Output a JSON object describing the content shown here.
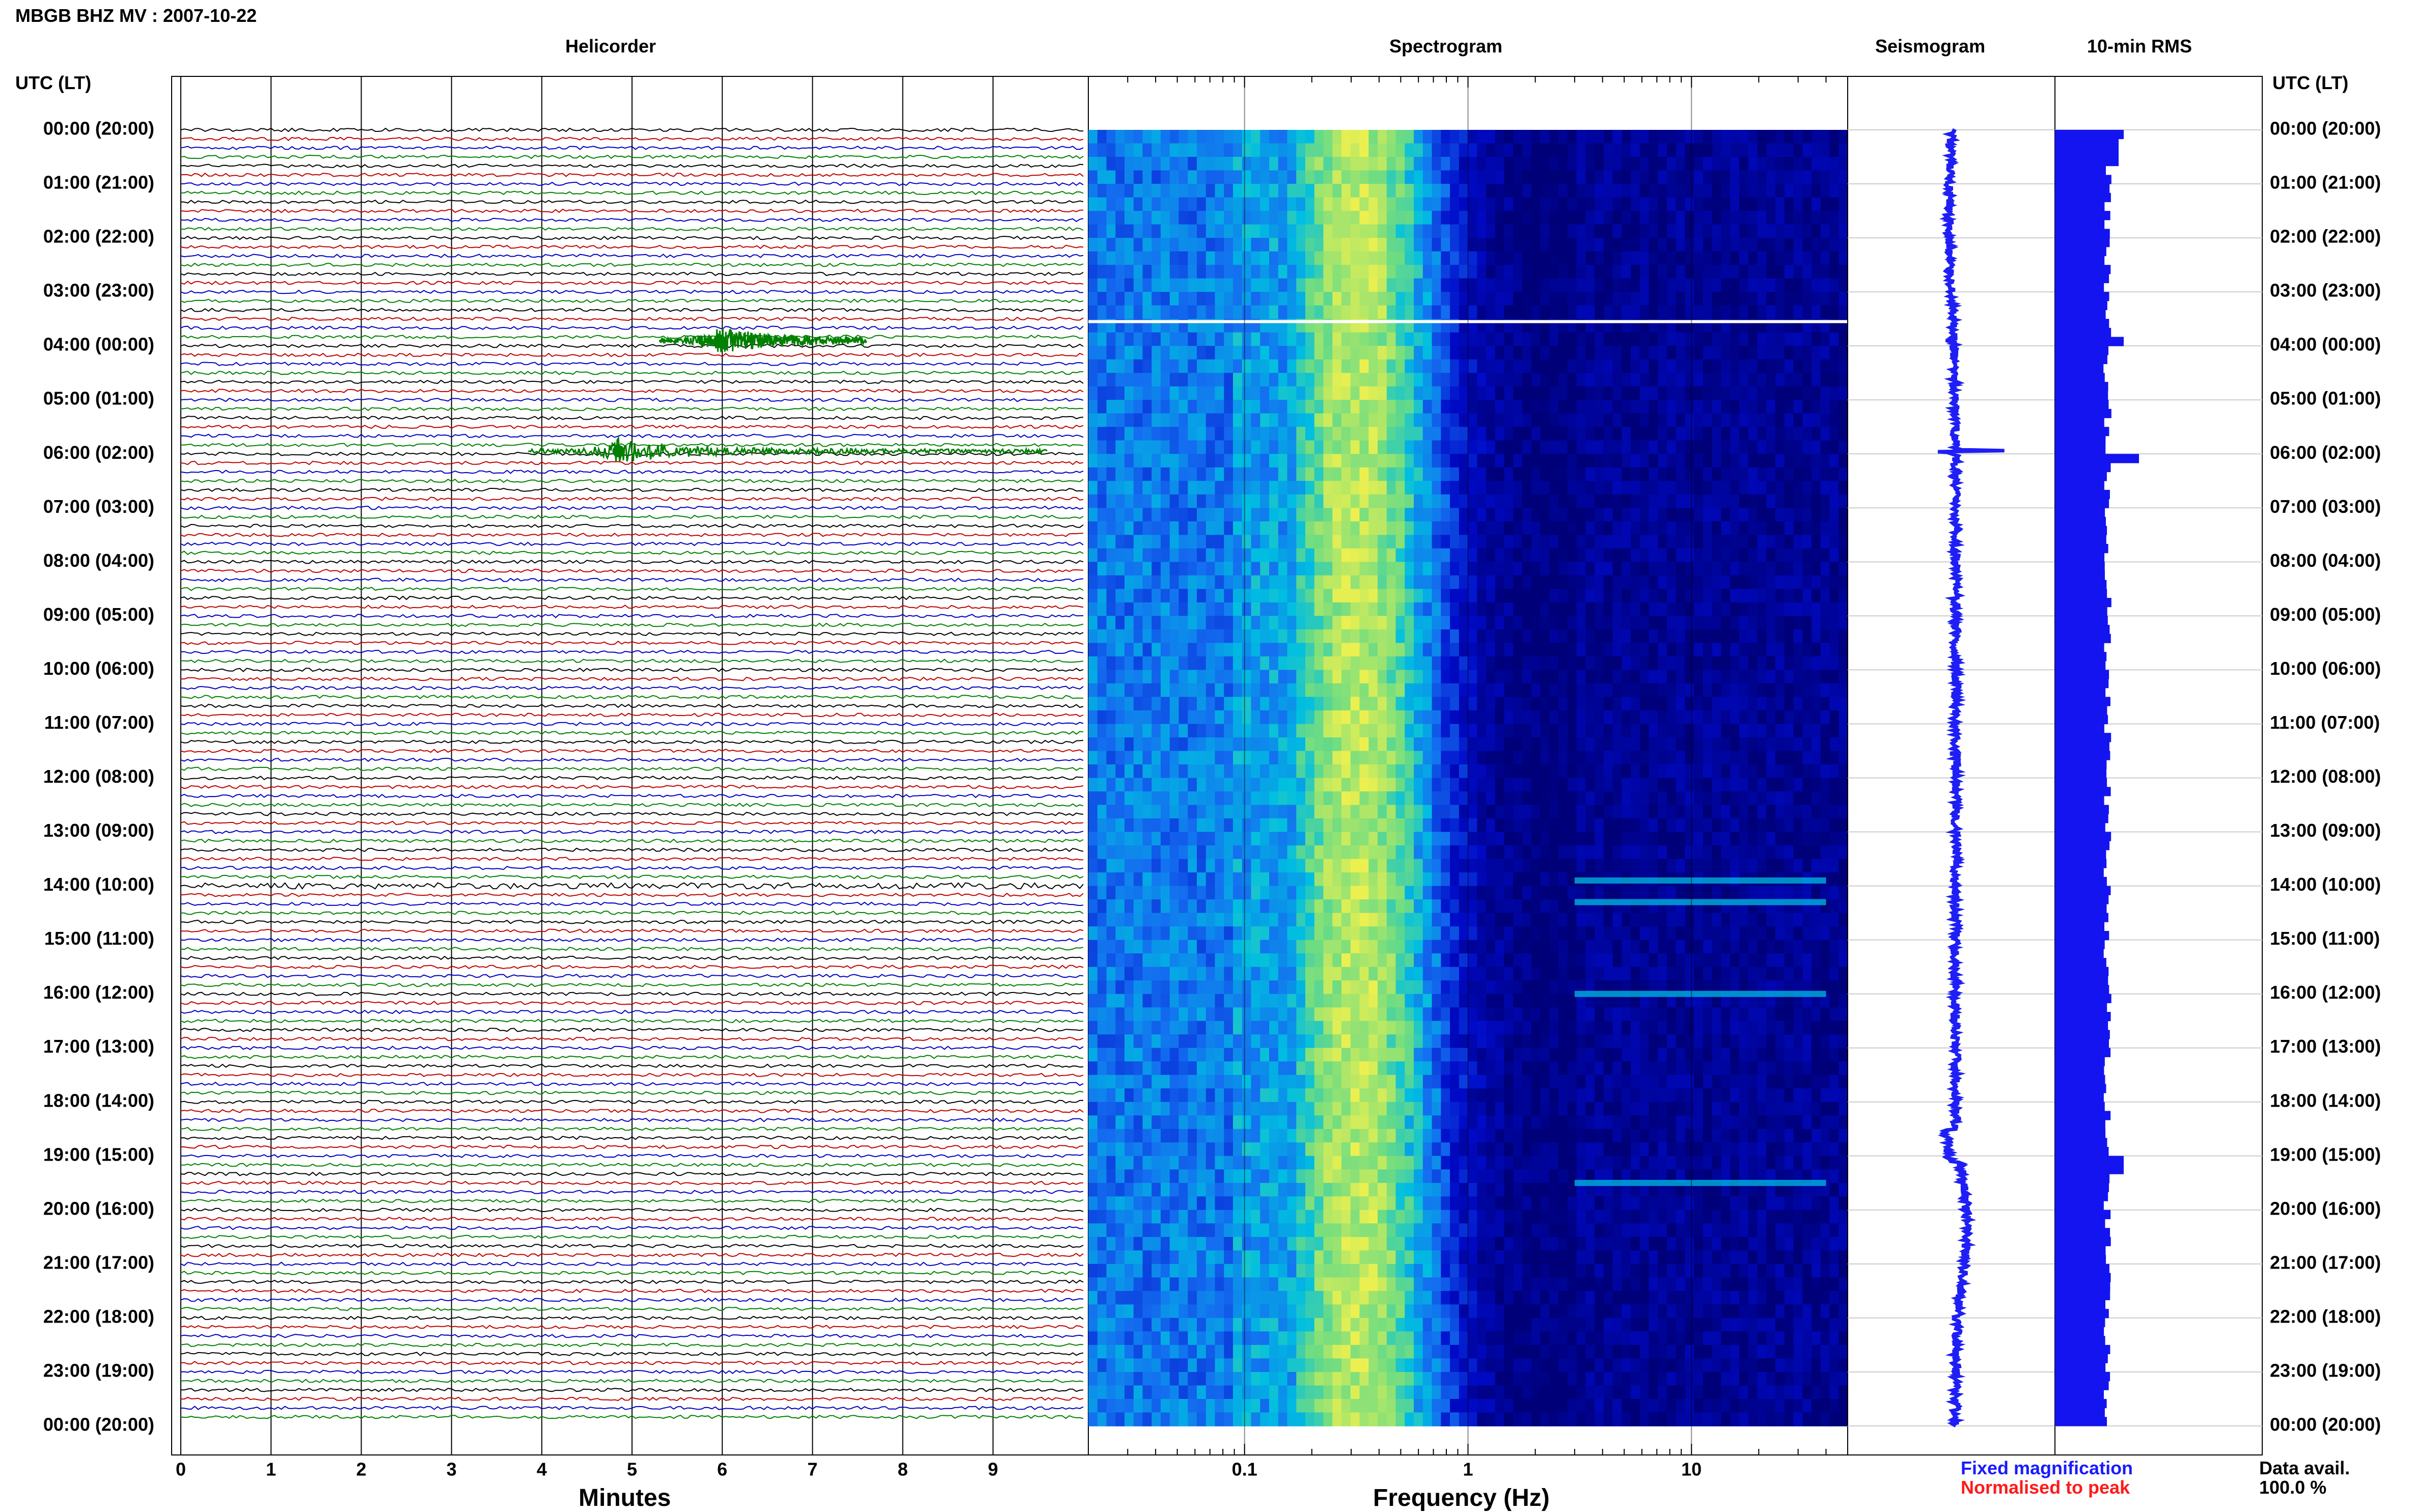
{
  "header": {
    "station_title": "MBGB BHZ MV : 2007-10-22",
    "helicorder_label": "Helicorder",
    "spectrogram_label": "Spectrogram",
    "seismogram_label": "Seismogram",
    "rms_label": "10-min RMS",
    "left_axis_label": "UTC (LT)",
    "right_axis_label": "UTC (LT)"
  },
  "footer": {
    "helicorder_xlabel": "Minutes",
    "spectrogram_xlabel": "Frequency (Hz)",
    "fixed_magnification": "Fixed magnification",
    "normalised_to_peak": "Normalised to peak",
    "data_avail_label": "Data avail.",
    "data_avail_value": "100.0 %"
  },
  "colors": {
    "trace_cycle": [
      "#000000",
      "#c00000",
      "#0000c0",
      "#008000"
    ],
    "spectrogram_low": "#000a8c",
    "spectrogram_mid": "#00b4dc",
    "spectrogram_high": "#f0f050",
    "rms_bar": "#1414f0",
    "seismogram": "#1e1ef5",
    "fixed_magnification": "#1a1aff",
    "normalised_to_peak": "#ff1a1a"
  },
  "chart_data": [
    {
      "type": "line",
      "name": "helicorder",
      "xlabel": "Minutes",
      "xlim": [
        0,
        10
      ],
      "x_ticks": [
        "0",
        "1",
        "2",
        "3",
        "4",
        "5",
        "6",
        "7",
        "8",
        "9"
      ],
      "row_labels": [
        "00:00 (20:00)",
        "01:00 (21:00)",
        "02:00 (22:00)",
        "03:00 (23:00)",
        "04:00 (00:00)",
        "05:00 (01:00)",
        "06:00 (02:00)",
        "07:00 (03:00)",
        "08:00 (04:00)",
        "09:00 (05:00)",
        "10:00 (06:00)",
        "11:00 (07:00)",
        "12:00 (08:00)",
        "13:00 (09:00)",
        "14:00 (10:00)",
        "15:00 (11:00)",
        "16:00 (12:00)",
        "17:00 (13:00)",
        "18:00 (14:00)",
        "19:00 (15:00)",
        "20:00 (16:00)",
        "21:00 (17:00)",
        "22:00 (18:00)",
        "23:00 (19:00)",
        "00:00 (20:00)"
      ],
      "trace_minutes": 10,
      "rows_per_hour": 6,
      "events": [
        {
          "hour": 3.9,
          "start_min": 5.3,
          "peak_min": 5.97,
          "end_min": 7.6
        },
        {
          "hour": 5.95,
          "start_min": 3.85,
          "peak_min": 4.85,
          "end_min": 9.6
        }
      ]
    },
    {
      "type": "heatmap",
      "name": "spectrogram",
      "xlabel": "Frequency (Hz)",
      "x_scale": "log",
      "xlim": [
        0.02,
        50
      ],
      "x_ticks": [
        "0.1",
        "1",
        "10"
      ],
      "hours": 24,
      "peak_band_hz": [
        0.2,
        0.5
      ],
      "gap_hour": 3.55,
      "high_frequency_bursts_hours": [
        13.9,
        14.3,
        16.0,
        19.5
      ]
    },
    {
      "type": "line",
      "name": "seismogram",
      "orientation": "vertical",
      "hours": 24,
      "spikes_hours": [
        3.9,
        5.95
      ]
    },
    {
      "type": "bar",
      "name": "10-min RMS",
      "orientation": "horizontal",
      "hours": 24,
      "bins_per_hour": 6,
      "elevated_hours": [
        0.0,
        3.9,
        5.95,
        19.0,
        19.2
      ]
    }
  ]
}
